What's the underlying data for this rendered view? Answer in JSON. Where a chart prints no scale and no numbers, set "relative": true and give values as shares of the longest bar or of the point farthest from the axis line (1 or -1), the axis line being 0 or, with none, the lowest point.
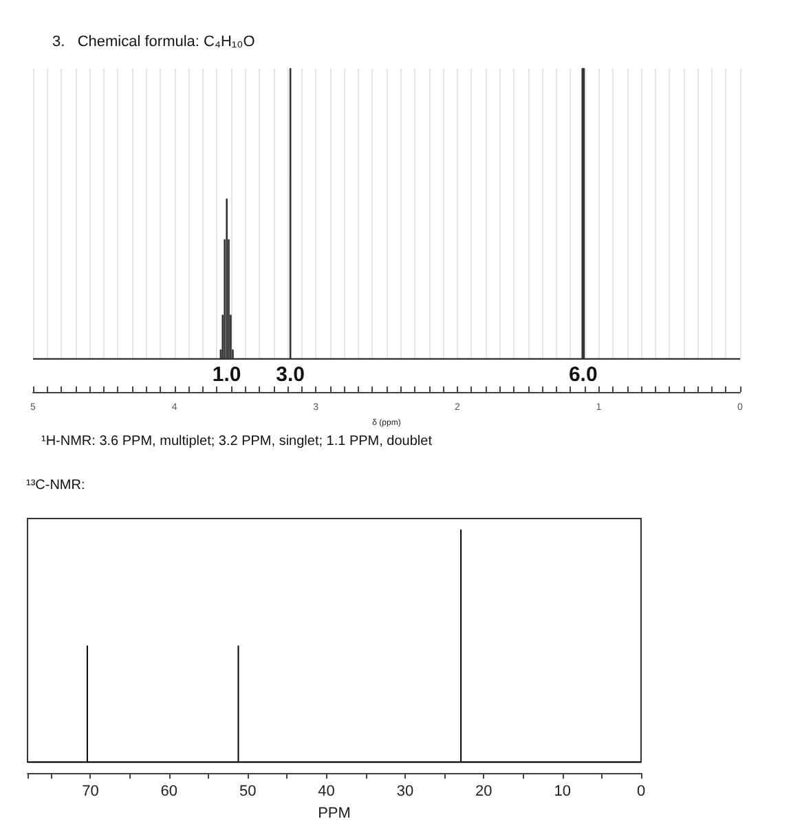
{
  "chart_data": [
    {
      "type": "line",
      "title": "3.   Chemical formula: C₄H₁₀O",
      "xlabel": "δ (ppm)",
      "relative": true,
      "color": "#333333",
      "grid": "x",
      "tick_labels": "x",
      "x": [
        5,
        3.673,
        3.673,
        3.673,
        3.659,
        3.659,
        3.659,
        3.645,
        3.645,
        3.645,
        3.63,
        3.63,
        3.63,
        3.616,
        3.616,
        3.616,
        3.602,
        3.602,
        3.602,
        3.587,
        3.587,
        3.587,
        3.18,
        3.18,
        3.18,
        1.115,
        1.115,
        1.115,
        1.105,
        1.105,
        1.105,
        0
      ],
      "values": [
        0,
        0,
        0.03,
        0,
        0,
        0.15,
        0,
        0,
        0.41,
        0,
        0,
        0.55,
        0,
        0,
        0.41,
        0,
        0,
        0.15,
        0,
        0,
        0.03,
        0,
        0,
        1,
        0,
        0,
        1,
        0,
        0,
        1,
        0,
        0
      ],
      "xlim": [
        5,
        0
      ],
      "xticks": [
        0,
        {
          "value": 0.1,
          "label": null
        },
        {
          "value": 0.2,
          "label": null
        },
        {
          "value": 0.3,
          "label": null
        },
        {
          "value": 0.4,
          "label": null
        },
        {
          "value": 0.5,
          "label": null
        },
        {
          "value": 0.6,
          "label": null
        },
        {
          "value": 0.7,
          "label": null
        },
        {
          "value": 0.8,
          "label": null
        },
        {
          "value": 0.9,
          "label": null
        },
        1,
        {
          "value": 1.1,
          "label": null
        },
        {
          "value": 1.2,
          "label": null
        },
        {
          "value": 1.3,
          "label": null
        },
        {
          "value": 1.4,
          "label": null
        },
        {
          "value": 1.5,
          "label": null
        },
        {
          "value": 1.6,
          "label": null
        },
        {
          "value": 1.7,
          "label": null
        },
        {
          "value": 1.8,
          "label": null
        },
        {
          "value": 1.9,
          "label": null
        },
        2,
        {
          "value": 2.1,
          "label": null
        },
        {
          "value": 2.2,
          "label": null
        },
        {
          "value": 2.3,
          "label": null
        },
        {
          "value": 2.4,
          "label": null
        },
        {
          "value": 2.5,
          "label": null
        },
        {
          "value": 2.6,
          "label": null
        },
        {
          "value": 2.7,
          "label": null
        },
        {
          "value": 2.8,
          "label": null
        },
        {
          "value": 2.9,
          "label": null
        },
        3,
        {
          "value": 3.1,
          "label": null
        },
        {
          "value": 3.2,
          "label": null
        },
        {
          "value": 3.3,
          "label": null
        },
        {
          "value": 3.4,
          "label": null
        },
        {
          "value": 3.5,
          "label": null
        },
        {
          "value": 3.6,
          "label": null
        },
        {
          "value": 3.7,
          "label": null
        },
        {
          "value": 3.8,
          "label": null
        },
        {
          "value": 3.9,
          "label": null
        },
        4,
        {
          "value": 4.1,
          "label": null
        },
        {
          "value": 4.2,
          "label": null
        },
        {
          "value": 4.3,
          "label": null
        },
        {
          "value": 4.4,
          "label": null
        },
        {
          "value": 4.5,
          "label": null
        },
        {
          "value": 4.6,
          "label": null
        },
        {
          "value": 4.7,
          "label": null
        },
        {
          "value": 4.8,
          "label": null
        },
        {
          "value": 4.9,
          "label": null
        },
        5
      ],
      "annotations": [
        {
          "text": "1.0",
          "x": 3.63,
          "y": 0
        },
        {
          "text": "3.0",
          "x": 3.18,
          "y": 0
        },
        {
          "text": "6.0",
          "x": 1.11,
          "y": 0
        },
        "¹H-NMR: 3.6 PPM, multiplet; 3.2 PPM, singlet; 1.1 PPM, doublet"
      ]
    },
    {
      "type": "line",
      "title": "¹³C-NMR:",
      "xlabel": "PPM",
      "relative": true,
      "color": "#000000",
      "tick_labels": "x",
      "x": [
        78,
        70.4,
        70.4,
        70.4,
        51.2,
        51.2,
        51.2,
        22.9,
        22.9,
        22.9,
        0
      ],
      "values": [
        0,
        0,
        0.5,
        0,
        0,
        0.5,
        0,
        0,
        1,
        0,
        0
      ],
      "xlim": [
        78,
        0
      ],
      "xticks": [
        0,
        {
          "value": 5,
          "label": null
        },
        10,
        {
          "value": 15,
          "label": null
        },
        20,
        {
          "value": 25,
          "label": null
        },
        30,
        {
          "value": 35,
          "label": null
        },
        40,
        {
          "value": 45,
          "label": null
        },
        50,
        {
          "value": 55,
          "label": null
        },
        60,
        {
          "value": 65,
          "label": null
        },
        70,
        {
          "value": 75,
          "label": null
        }
      ]
    }
  ]
}
